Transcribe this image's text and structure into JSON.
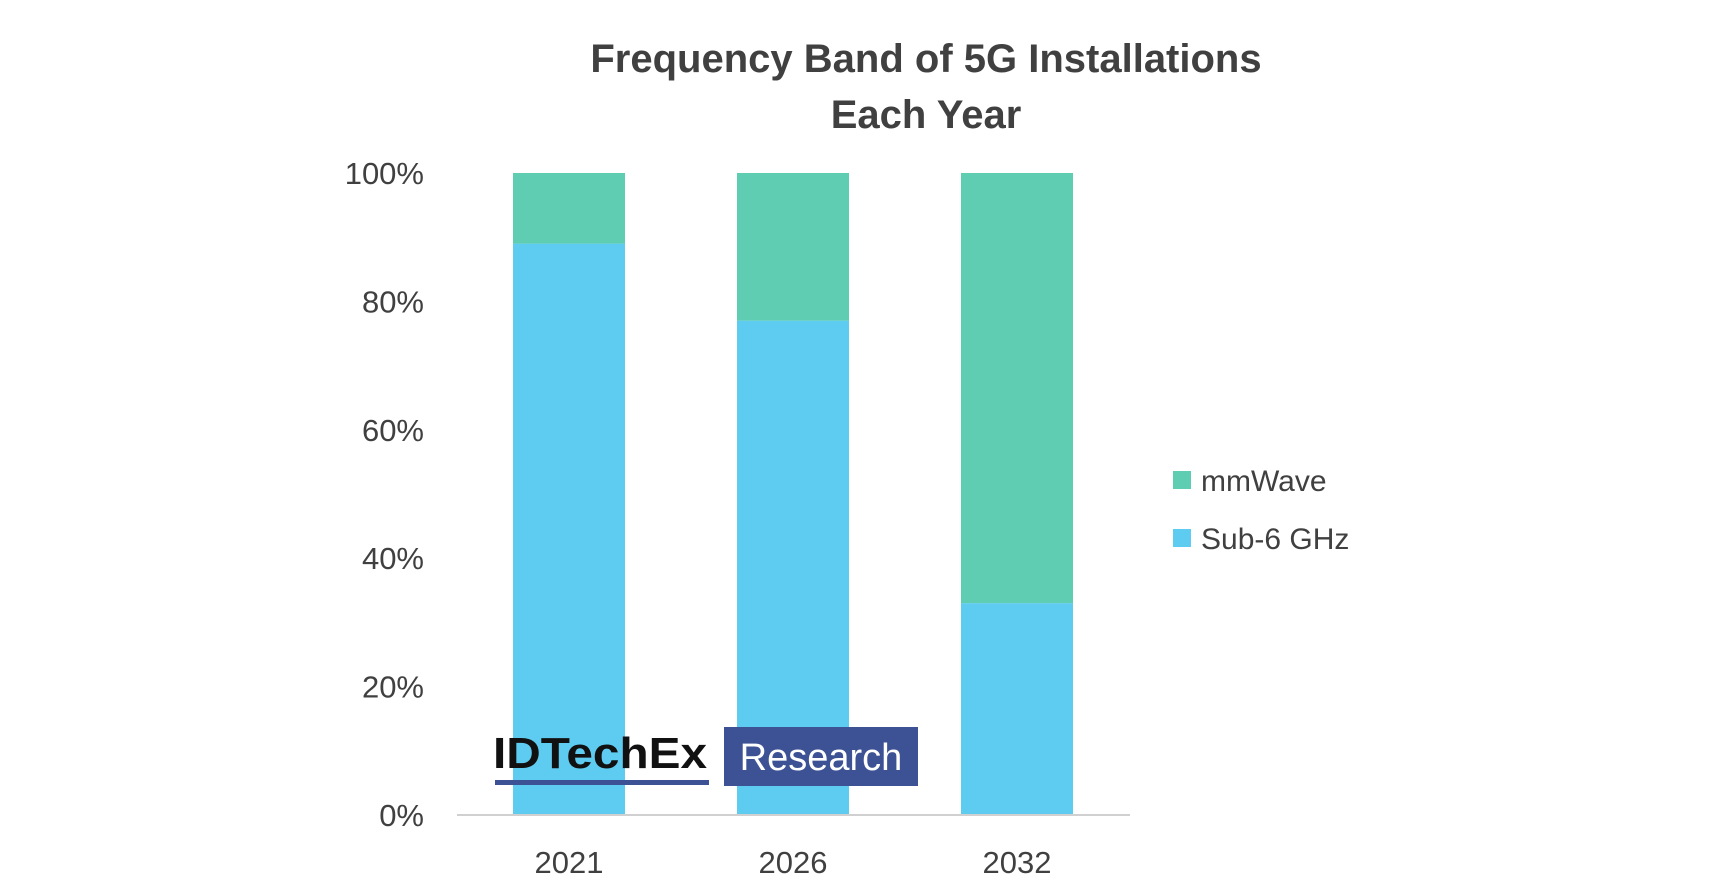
{
  "chart_data": {
    "type": "bar",
    "stacked": true,
    "percent": true,
    "title": "Frequency Band of 5G Installations Each Year",
    "title_lines": [
      "Frequency Band of 5G Installations",
      "Each Year"
    ],
    "xlabel": "",
    "ylabel": "",
    "categories": [
      "2021",
      "2026",
      "2032"
    ],
    "series": [
      {
        "name": "Sub-6 GHz",
        "values": [
          89,
          77,
          33
        ],
        "color": "#5ecbf1"
      },
      {
        "name": "mmWave",
        "values": [
          11,
          23,
          67
        ],
        "color": "#5ecdb1"
      }
    ],
    "ylim": [
      0,
      100
    ],
    "yticks": [
      "0%",
      "20%",
      "40%",
      "60%",
      "80%",
      "100%"
    ],
    "grid": false,
    "legend_position": "right",
    "legend": [
      "mmWave",
      "Sub-6 GHz"
    ]
  },
  "watermark": {
    "brand": "IDTechEx",
    "tag": "Research",
    "tag_bg": "#3d5294",
    "underline": "#3d5294"
  }
}
